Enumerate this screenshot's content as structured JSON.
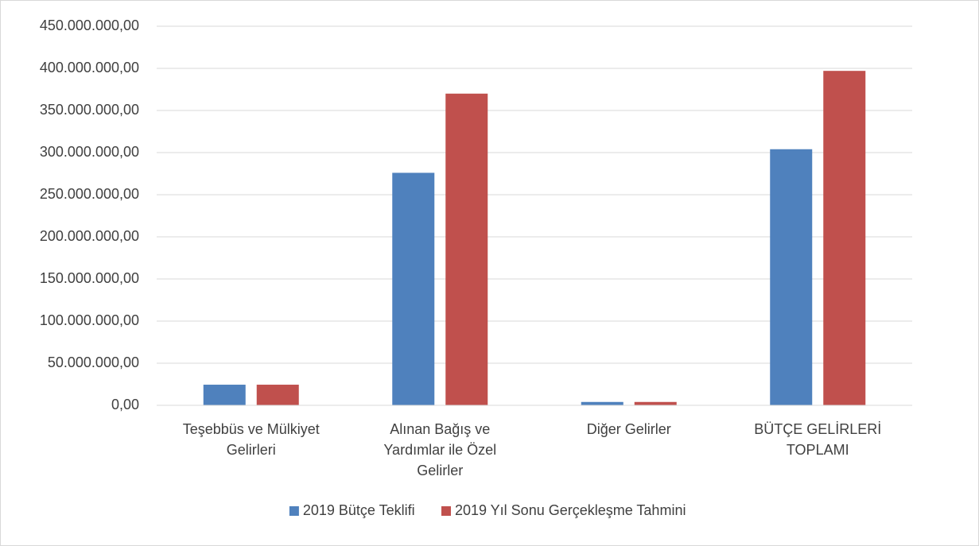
{
  "chart_data": {
    "type": "bar",
    "categories": [
      "Teşebbüs ve Mülkiyet Gelirleri",
      "Alınan Bağış ve Yardımlar ile Özel Gelirler",
      "Diğer Gelirler",
      "BÜTÇE GELİRLERİ TOPLAMI"
    ],
    "series": [
      {
        "name": "2019 Bütçe Teklifi",
        "color": "#4f81bd",
        "values": [
          24500000,
          276000000,
          4000000,
          304000000
        ]
      },
      {
        "name": "2019 Yıl Sonu Gerçekleşme Tahmini",
        "color": "#c0504d",
        "values": [
          24500000,
          370000000,
          4000000,
          397000000
        ]
      }
    ],
    "ylim": [
      0,
      450000000
    ],
    "yticks": [
      {
        "value": 0,
        "label": "0,00"
      },
      {
        "value": 50000000,
        "label": "50.000.000,00"
      },
      {
        "value": 100000000,
        "label": "100.000.000,00"
      },
      {
        "value": 150000000,
        "label": "150.000.000,00"
      },
      {
        "value": 200000000,
        "label": "200.000.000,00"
      },
      {
        "value": 250000000,
        "label": "250.000.000,00"
      },
      {
        "value": 300000000,
        "label": "300.000.000,00"
      },
      {
        "value": 350000000,
        "label": "350.000.000,00"
      },
      {
        "value": 400000000,
        "label": "400.000.000,00"
      },
      {
        "value": 450000000,
        "label": "450.000.000,00"
      }
    ],
    "grid": true,
    "legend": "bottom"
  }
}
